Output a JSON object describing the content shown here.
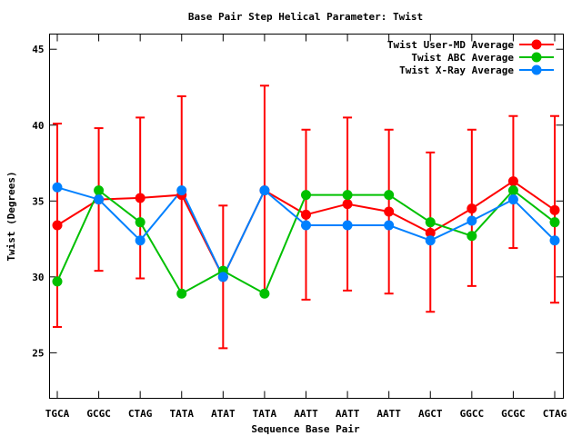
{
  "chart_data": {
    "type": "line",
    "title": "Base Pair Step Helical Parameter: Twist",
    "xlabel": "Sequence Base Pair",
    "ylabel": "Twist (Degrees)",
    "ylim": [
      22,
      46
    ],
    "yticks": [
      25,
      30,
      35,
      40,
      45
    ],
    "categories": [
      "TGCA",
      "GCGC",
      "CTAG",
      "TATA",
      "ATAT",
      "TATA",
      "AATT",
      "AATT",
      "AATT",
      "AGCT",
      "GGCC",
      "GCGC",
      "CTAG"
    ],
    "legend_position": "top-right",
    "grid": false,
    "series": [
      {
        "name": "Twist User-MD Average",
        "color": "#ff0000",
        "values": [
          33.4,
          35.1,
          35.2,
          35.4,
          30.0,
          35.7,
          34.1,
          34.8,
          34.3,
          32.9,
          34.5,
          36.3,
          34.4
        ],
        "error_low": [
          26.7,
          30.4,
          29.9,
          28.9,
          25.3,
          28.9,
          28.5,
          29.1,
          28.9,
          27.7,
          29.4,
          31.9,
          28.3
        ],
        "error_high": [
          40.1,
          39.8,
          40.5,
          41.9,
          34.7,
          42.6,
          39.7,
          40.5,
          39.7,
          38.2,
          39.7,
          40.6,
          40.6
        ]
      },
      {
        "name": "Twist ABC Average",
        "color": "#00c000",
        "values": [
          29.7,
          35.7,
          33.6,
          28.9,
          30.4,
          28.9,
          35.4,
          35.4,
          35.4,
          33.6,
          32.7,
          35.7,
          33.6
        ]
      },
      {
        "name": "Twist X-Ray Average",
        "color": "#0080ff",
        "values": [
          35.9,
          35.1,
          32.4,
          35.7,
          30.0,
          35.7,
          33.4,
          33.4,
          33.4,
          32.4,
          33.7,
          35.1,
          32.4
        ]
      }
    ]
  }
}
